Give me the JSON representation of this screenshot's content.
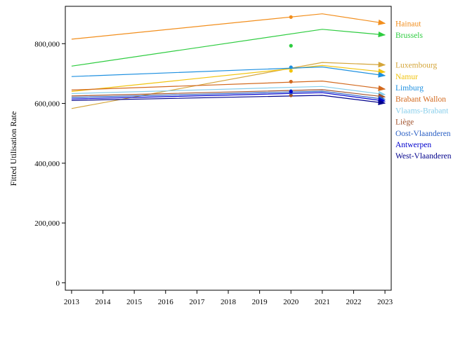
{
  "chart_data": {
    "type": "line",
    "title": "",
    "xlabel": "",
    "ylabel": "Fitted Utilisation Rate",
    "x": [
      2013,
      2021,
      2023
    ],
    "x_ticks": [
      2013,
      2014,
      2015,
      2016,
      2017,
      2018,
      2019,
      2020,
      2021,
      2022,
      2023
    ],
    "xlim": [
      2012.8,
      2023.2
    ],
    "ylim": [
      -25000,
      925000
    ],
    "y_ticks": [
      0,
      200000,
      400000,
      600000,
      800000
    ],
    "y_tick_labels": [
      "0",
      "200,000",
      "400,000",
      "600,000",
      "800,000"
    ],
    "observed_year": 2020,
    "grid": false,
    "legend": "right, as end-of-line labels",
    "series": [
      {
        "name": "Hainaut",
        "color": "#f28e1c",
        "values": [
          815000,
          900000,
          868000
        ],
        "observed": 889000
      },
      {
        "name": "Brussels",
        "color": "#2ecc40",
        "values": [
          725000,
          848000,
          829000
        ],
        "observed": 793000
      },
      {
        "name": "Luxembourg",
        "color": "#d4a53a",
        "values": [
          583000,
          737000,
          729000
        ],
        "observed": null
      },
      {
        "name": "Namur",
        "color": "#f1c40f",
        "values": [
          640000,
          727000,
          705000
        ],
        "observed": 709000
      },
      {
        "name": "Limburg",
        "color": "#1e90e0",
        "values": [
          690000,
          722000,
          693000
        ],
        "observed": 721000
      },
      {
        "name": "Brabant Wallon",
        "color": "#d2691e",
        "values": [
          645000,
          675000,
          648000
        ],
        "observed": 673000
      },
      {
        "name": "Vlaams-Brabant",
        "color": "#87ceeb",
        "values": [
          633000,
          657000,
          630000
        ],
        "observed": 642000
      },
      {
        "name": "Liège",
        "color": "#a0522d",
        "values": [
          625000,
          646000,
          622000
        ],
        "observed": 627000
      },
      {
        "name": "Oost-Vlaanderen",
        "color": "#2a5fc4",
        "values": [
          620000,
          641000,
          614000
        ],
        "observed": 636000
      },
      {
        "name": "Antwerpen",
        "color": "#0000cd",
        "values": [
          615000,
          636000,
          608000
        ],
        "observed": 640000
      },
      {
        "name": "West-Vlaanderen",
        "color": "#00008b",
        "values": [
          610000,
          627000,
          601000
        ],
        "observed": null
      }
    ]
  }
}
